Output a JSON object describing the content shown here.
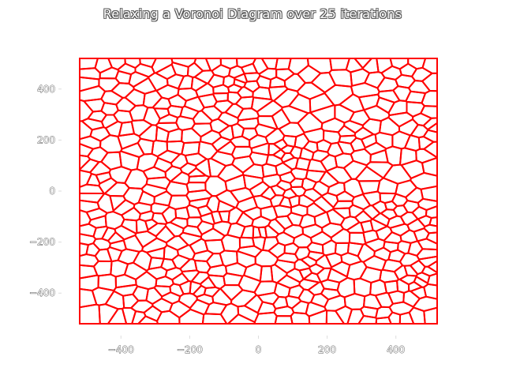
{
  "chart_data": {
    "type": "voronoi",
    "title": "Relaxing a Voronoi Diagram over 25 iterations",
    "xlabel": "",
    "ylabel": "",
    "xlim": [
      -520,
      520
    ],
    "ylim": [
      -520,
      520
    ],
    "xticks": [
      -400,
      -200,
      0,
      200,
      400
    ],
    "yticks": [
      -400,
      -200,
      0,
      200,
      400
    ],
    "xtick_labels": [
      "−400",
      "−200",
      "0",
      "200",
      "400"
    ],
    "ytick_labels": [
      "−400",
      "−200",
      "0",
      "200",
      "400"
    ],
    "iterations": 25,
    "num_sites": 600,
    "edge_color": "#ff0000",
    "grid": false
  }
}
